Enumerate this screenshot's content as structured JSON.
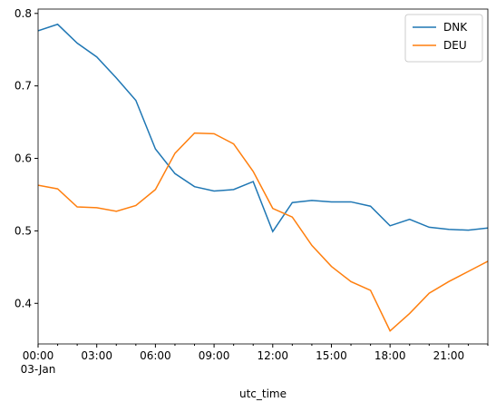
{
  "chart_data": {
    "type": "line",
    "x_label": "utc_time",
    "x_date_label": "03-Jan",
    "categories": [
      "00:00",
      null,
      null,
      "03:00",
      null,
      null,
      "06:00",
      null,
      null,
      "09:00",
      null,
      null,
      "12:00",
      null,
      null,
      "15:00",
      null,
      null,
      "18:00",
      null,
      null,
      "21:00",
      null,
      null
    ],
    "series": [
      {
        "name": "DNK",
        "color": "#1f77b4",
        "values": [
          0.776,
          0.785,
          0.759,
          0.74,
          0.711,
          0.68,
          0.613,
          0.579,
          0.561,
          0.555,
          0.557,
          0.568,
          0.499,
          0.539,
          0.542,
          0.54,
          0.54,
          0.534,
          0.507,
          0.516,
          0.505,
          0.502,
          0.501,
          0.504
        ]
      },
      {
        "name": "DEU",
        "color": "#ff7f0e",
        "values": [
          0.563,
          0.558,
          0.533,
          0.532,
          0.527,
          0.535,
          0.557,
          0.607,
          0.635,
          0.634,
          0.62,
          0.582,
          0.531,
          0.519,
          0.48,
          0.451,
          0.43,
          0.418,
          0.362,
          0.386,
          0.414,
          0.43,
          0.444,
          0.458
        ]
      }
    ],
    "ylim": [
      0.344,
      0.806
    ],
    "yticks": [
      0.4,
      0.5,
      0.6,
      0.7,
      0.8
    ],
    "legend": "upper right"
  }
}
